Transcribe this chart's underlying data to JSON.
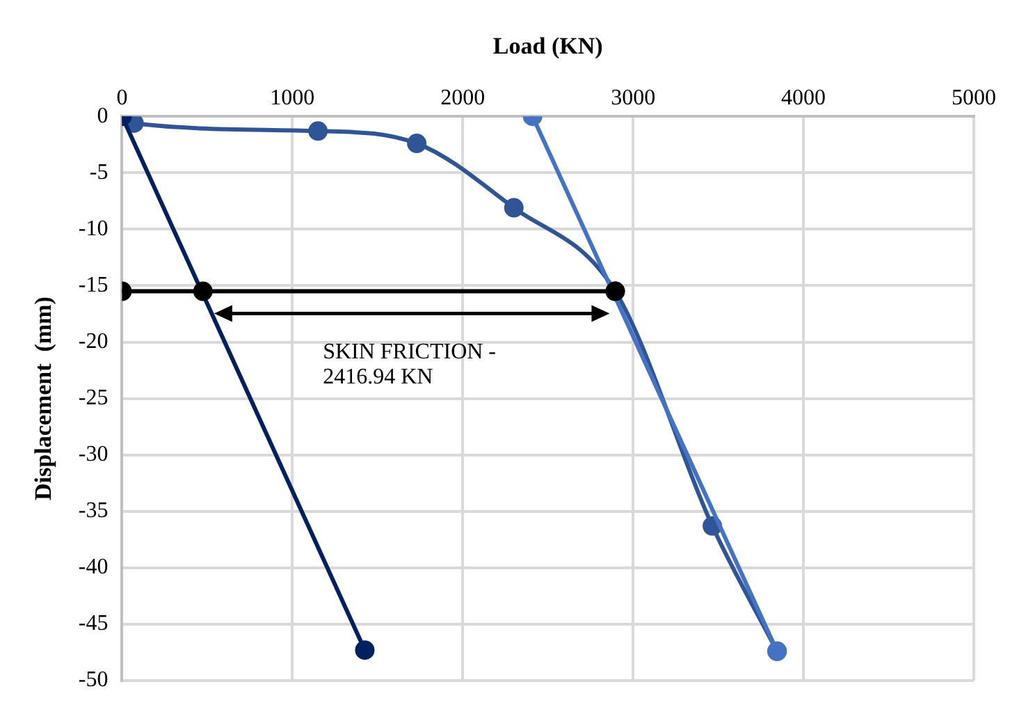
{
  "chart_data": {
    "type": "line",
    "xlabel": "Load (KN)",
    "ylabel": "Displacement  (mm)",
    "xlim": [
      0,
      5000
    ],
    "xticks": [
      0,
      1000,
      2000,
      3000,
      4000,
      5000
    ],
    "ylim": [
      -50,
      0
    ],
    "yticks": [
      -50,
      -45,
      -40,
      -35,
      -30,
      -25,
      -20,
      -15,
      -10,
      -5,
      0
    ],
    "grid": true,
    "legend": false,
    "marker": "circle",
    "line_style": "solid",
    "series": [
      {
        "color": "#2f5597",
        "x": [
          0,
          70,
          1150,
          1730,
          2300,
          2895,
          3465,
          3845
        ],
        "values": [
          0,
          -0.6,
          -1.3,
          -2.4,
          -8.1,
          -15.5,
          -36.3,
          -47.4
        ]
      },
      {
        "color": "#4472c4",
        "x": [
          2410,
          3845
        ],
        "values": [
          0,
          -47.4
        ]
      },
      {
        "color": "#002060",
        "x": [
          0,
          1425
        ],
        "values": [
          0,
          -47.3
        ]
      },
      {
        "color": "#000000",
        "x": [
          0,
          475,
          2895
        ],
        "values": [
          -15.5,
          -15.5,
          -15.5
        ]
      }
    ],
    "annotations": [
      "SKIN FRICTION -\n2416.94 KN"
    ]
  }
}
